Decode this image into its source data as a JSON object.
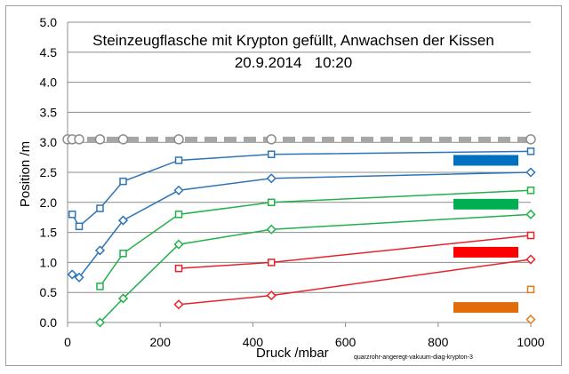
{
  "chart_data": {
    "type": "line",
    "title": "Steinzeugflasche mit Krypton gefüllt, Anwachsen der Kissen",
    "subtitle": "20.9.2014   10:20",
    "xlabel": "Druck /mbar",
    "ylabel": "Position /m",
    "source_note": "quarzrohr-angeregt-vakuum-diag-krypton-3",
    "xlim": [
      0,
      1000
    ],
    "ylim": [
      0,
      5
    ],
    "xticks": [
      "0",
      "200",
      "400",
      "600",
      "800",
      "1000"
    ],
    "yticks": [
      "0.0",
      "0.5",
      "1.0",
      "1.5",
      "2.0",
      "2.5",
      "3.0",
      "3.5",
      "4.0",
      "4.5",
      "5.0"
    ],
    "grid": "horizontal",
    "legend": "right",
    "series": [
      {
        "color": "#a6a6a6",
        "marker": "circle",
        "style": "dashed",
        "points": [
          [
            0,
            3.05
          ],
          [
            10,
            3.05
          ],
          [
            25,
            3.05
          ],
          [
            70,
            3.05
          ],
          [
            120,
            3.05
          ],
          [
            240,
            3.05
          ],
          [
            440,
            3.05
          ],
          [
            1000,
            3.05
          ]
        ]
      },
      {
        "color": "#2e75b6",
        "marker": "square",
        "points": [
          [
            10,
            1.8
          ],
          [
            25,
            1.6
          ],
          [
            70,
            1.9
          ],
          [
            120,
            2.35
          ],
          [
            240,
            2.7
          ],
          [
            440,
            2.8
          ],
          [
            1000,
            2.85
          ]
        ]
      },
      {
        "color": "#2e75b6",
        "marker": "diamond",
        "points": [
          [
            10,
            0.8
          ],
          [
            25,
            0.75
          ],
          [
            70,
            1.2
          ],
          [
            120,
            1.7
          ],
          [
            240,
            2.2
          ],
          [
            440,
            2.4
          ],
          [
            1000,
            2.5
          ]
        ]
      },
      {
        "color": "#22b14c",
        "marker": "square",
        "points": [
          [
            70,
            0.6
          ],
          [
            120,
            1.15
          ],
          [
            240,
            1.8
          ],
          [
            440,
            2.0
          ],
          [
            1000,
            2.2
          ]
        ]
      },
      {
        "color": "#22b14c",
        "marker": "diamond",
        "points": [
          [
            70,
            0.0
          ],
          [
            120,
            0.4
          ],
          [
            240,
            1.3
          ],
          [
            440,
            1.55
          ],
          [
            1000,
            1.8
          ]
        ]
      },
      {
        "color": "#e8222a",
        "marker": "square",
        "points": [
          [
            240,
            0.9
          ],
          [
            440,
            1.0
          ],
          [
            1000,
            1.45
          ]
        ]
      },
      {
        "color": "#e8222a",
        "marker": "diamond",
        "points": [
          [
            240,
            0.3
          ],
          [
            440,
            0.45
          ],
          [
            1000,
            1.05
          ]
        ]
      },
      {
        "color": "#e07b1a",
        "marker": "square",
        "points": [
          [
            1000,
            0.55
          ]
        ]
      },
      {
        "color": "#e07b1a",
        "marker": "diamond",
        "points": [
          [
            1000,
            0.05
          ]
        ]
      }
    ],
    "legend_swatches": [
      {
        "color": "#0070c0",
        "y": 2.7
      },
      {
        "color": "#00b050",
        "y": 1.97
      },
      {
        "color": "#ff0000",
        "y": 1.17
      },
      {
        "color": "#e36c0a",
        "y": 0.25
      }
    ]
  }
}
